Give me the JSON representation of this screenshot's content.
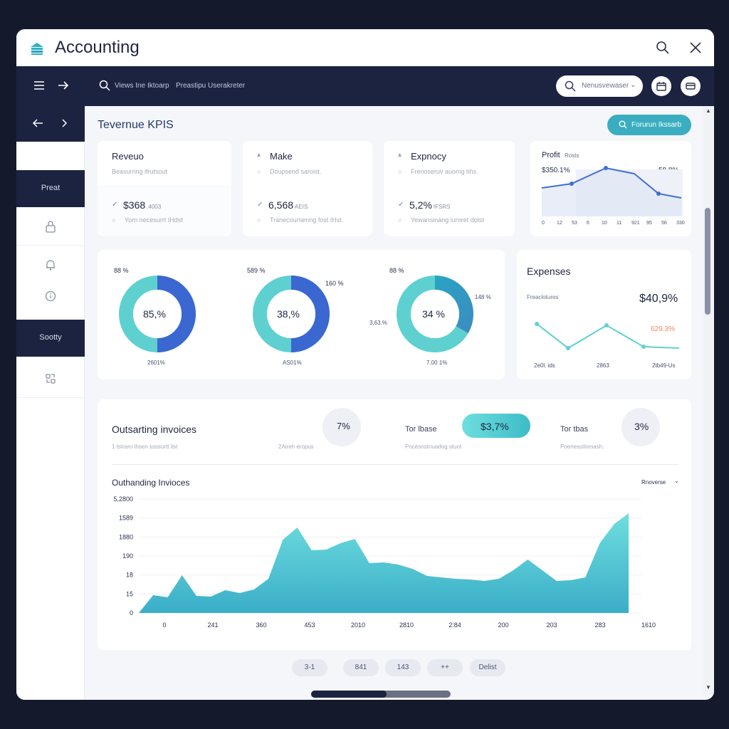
{
  "app": {
    "title": "Accounting"
  },
  "topbar": {
    "breadcrumb_1": "Views Ine Iktoarp",
    "breadcrumb_2": "Preastipu Userakreter",
    "search_placeholder": "Nenusvewaser",
    "search_chevron": "⌄"
  },
  "sidebar": {
    "sections": [
      {
        "label": "Preat"
      },
      {
        "label": "Sootty"
      }
    ],
    "items": [
      {
        "icon": "lock-icon"
      },
      {
        "icon": "bell-icon"
      },
      {
        "icon": "info-icon"
      },
      {
        "icon": "link-icon"
      }
    ]
  },
  "page": {
    "title": "Tevernue KPIS",
    "report_button": "Forurun Ikssarb"
  },
  "kpis": [
    {
      "name": "Reveuo",
      "desc": "Beasurring ifrutsout",
      "value": "$368",
      "unit": ".4003",
      "note": "Yorn necesurrt IHdst",
      "arrow": "",
      "check": "✓",
      "dot": "○"
    },
    {
      "name": "Make",
      "desc": "Doupsend saroist.",
      "value": "6,568",
      "unit": "AEIS",
      "note": "Tranecoursenng fost IHst.",
      "arrow": "▴",
      "check": "✓",
      "dot": "○"
    },
    {
      "name": "Expnocy",
      "desc": "Frenoseruv auomg tihs.",
      "value": "5,2%",
      "unit": "IFSRS",
      "note": "Yewansinang iuroret dolst",
      "arrow": "▴",
      "check": "✓",
      "dot": "○"
    }
  ],
  "profit": {
    "title": "Profit",
    "subtitle": "Rosts",
    "value_left": "$350.1%",
    "value_right": "58,8%",
    "x_labels": [
      "0",
      "12",
      "53",
      "6",
      "10",
      "11",
      "921",
      "95",
      "56",
      "330"
    ]
  },
  "donuts": [
    {
      "center": "85,%",
      "top_label": "88 %",
      "bottom_label": "2601%",
      "side_label": "",
      "fill": 0.5
    },
    {
      "center": "38,%",
      "top_label": "589 %",
      "bottom_label": "AS01%",
      "side_label": "160 %",
      "fill": 0.5
    },
    {
      "center": "34 %",
      "top_label": "88 %",
      "bottom_label": "7.00 1%",
      "side_label": "148 %",
      "left_label": "3,63.%",
      "fill": 0.33
    }
  ],
  "expenses": {
    "title": "Expenses",
    "subtitle": "Freaclotures",
    "value": "$40,9%",
    "delta": "629.3%",
    "x_labels": [
      "2e0l. ids",
      "2863",
      "2tb49-Us"
    ]
  },
  "invoices_summary": {
    "title": "Outsarting invoices",
    "sub_1": "1 tstraro ihsen ssssurtt list",
    "sub_2": "2Aireh eropus",
    "badge_1": "7%",
    "stat_1_label": "Tor lbase",
    "stat_1_sub": "Pocesnstnuadog stuot",
    "stat_1_value": "$3,7%",
    "stat_2_label": "Tor tbas",
    "stat_2_sub": "Poenesstlomash.",
    "badge_2": "3%"
  },
  "chart_data": {
    "type": "area",
    "title": "Outhanding Invioces",
    "dropdown": "Rnoverse",
    "y_ticks": [
      "0",
      "15",
      "18",
      "190",
      "1880",
      "1589",
      "5,2800"
    ],
    "x_ticks": [
      "0",
      "241",
      "360",
      "453",
      "2010",
      "2810",
      "2:84",
      "200",
      "203",
      "283",
      "1610"
    ],
    "values": [
      0,
      25,
      22,
      53,
      24,
      23,
      32,
      28,
      33,
      48,
      103,
      120,
      88,
      89,
      98,
      104,
      70,
      71,
      68,
      62,
      52,
      50,
      48,
      47,
      45,
      48,
      60,
      75,
      60,
      45,
      46,
      50,
      98,
      125,
      140
    ],
    "ylim": [
      0,
      160
    ]
  },
  "pagination": [
    "3-1",
    "841",
    "143",
    "++",
    "Delist"
  ],
  "colors": {
    "navy": "#1c2340",
    "teal": "#5fd0d0",
    "blue": "#3f6fd1",
    "accent": "#3aaec0",
    "orange": "#f08a5d"
  }
}
